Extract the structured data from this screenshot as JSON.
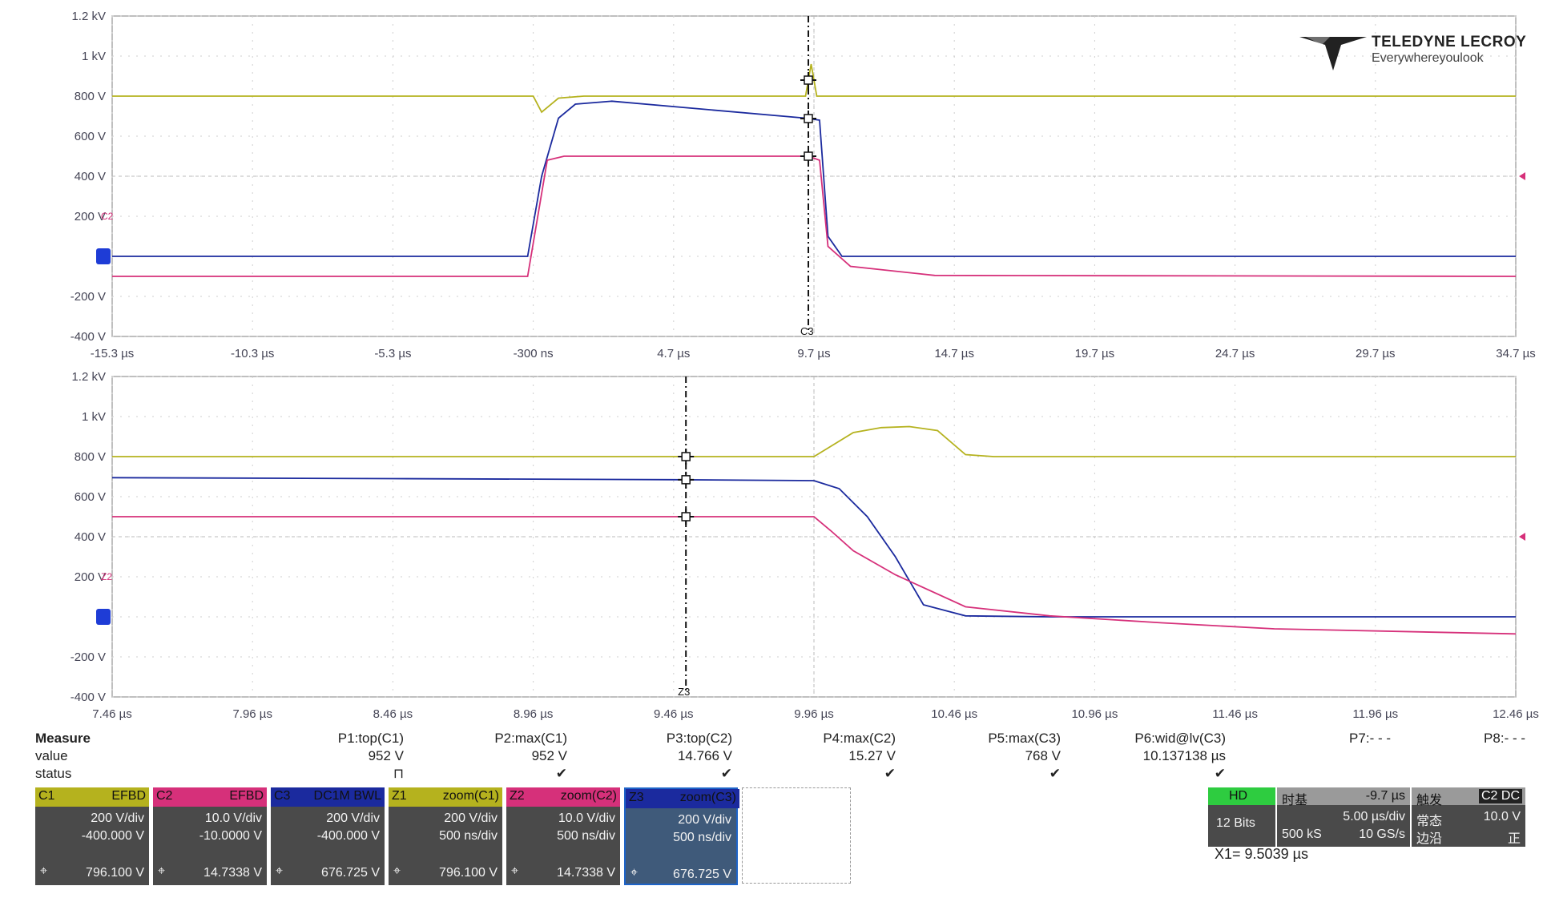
{
  "logo": {
    "brand": "TELEDYNE LECROY",
    "tagline": "Everywhereyoulook"
  },
  "colors": {
    "c1": "#b5b21e",
    "c2": "#d6307a",
    "c3": "#1b2a9e",
    "grid": "#cfcfcf",
    "panel": "#4a4a4a"
  },
  "upper_panel": {
    "y_ticks": [
      "1.2 kV",
      "1 kV",
      "800 V",
      "600 V",
      "400 V",
      "200 V",
      "0",
      "-200 V",
      "-400 V"
    ],
    "x_ticks": [
      "-15.3 µs",
      "-10.3 µs",
      "-5.3 µs",
      "-300 ns",
      "4.7 µs",
      "9.7 µs",
      "14.7 µs",
      "19.7 µs",
      "24.7 µs",
      "29.7 µs",
      "34.7 µs"
    ],
    "cursor_label": "C3",
    "channel_marker_label": "C2"
  },
  "lower_panel": {
    "y_ticks": [
      "1.2 kV",
      "1 kV",
      "800 V",
      "600 V",
      "400 V",
      "200 V",
      "0",
      "-200 V",
      "-400 V"
    ],
    "x_ticks": [
      "7.46 µs",
      "7.96 µs",
      "8.46 µs",
      "8.96 µs",
      "9.46 µs",
      "9.96 µs",
      "10.46 µs",
      "10.96 µs",
      "11.46 µs",
      "11.96 µs",
      "12.46 µs"
    ],
    "cursor_label": "Z3",
    "channel_marker_label": "Z2"
  },
  "chart_data": [
    {
      "type": "line",
      "title": "",
      "xlabel": "",
      "ylabel": "",
      "x_unit": "µs",
      "y_unit": "V",
      "xlim": [
        -15.3,
        34.7
      ],
      "ylim": [
        -400,
        1200
      ],
      "grid": true,
      "series": [
        {
          "channel": "C1",
          "x": [
            -15.3,
            -0.3,
            0.0,
            0.6,
            1.5,
            9.4,
            9.6,
            9.8,
            10.0,
            34.7
          ],
          "y": [
            800,
            800,
            720,
            790,
            800,
            800,
            960,
            800,
            800,
            800
          ]
        },
        {
          "channel": "C3",
          "x": [
            -15.3,
            -0.5,
            0.0,
            0.6,
            1.2,
            2.5,
            9.4,
            9.9,
            10.2,
            10.7,
            34.7
          ],
          "y": [
            0,
            0,
            400,
            690,
            760,
            775,
            690,
            680,
            100,
            0,
            0
          ]
        },
        {
          "channel": "C2",
          "x": [
            -15.3,
            -0.5,
            0.2,
            0.8,
            2.0,
            9.5,
            9.9,
            10.2,
            11.0,
            14.0,
            34.7
          ],
          "y": [
            -100,
            -100,
            480,
            500,
            500,
            500,
            480,
            50,
            -50,
            -95,
            -100
          ]
        }
      ],
      "cursor_x": 9.5
    },
    {
      "type": "line",
      "title": "",
      "xlabel": "",
      "ylabel": "",
      "x_unit": "µs",
      "y_unit": "V",
      "xlim": [
        7.46,
        12.46
      ],
      "ylim": [
        -400,
        1200
      ],
      "grid": true,
      "series": [
        {
          "channel": "Z1",
          "x": [
            7.46,
            9.96,
            10.1,
            10.2,
            10.3,
            10.4,
            10.5,
            10.6,
            12.46
          ],
          "y": [
            800,
            800,
            920,
            945,
            950,
            930,
            810,
            800,
            800
          ]
        },
        {
          "channel": "Z3",
          "x": [
            7.46,
            8.46,
            9.46,
            9.96,
            10.05,
            10.15,
            10.25,
            10.35,
            10.5,
            10.8,
            12.46
          ],
          "y": [
            695,
            690,
            685,
            680,
            640,
            500,
            300,
            60,
            5,
            0,
            0
          ]
        },
        {
          "channel": "Z2",
          "x": [
            7.46,
            8.46,
            9.46,
            9.96,
            10.02,
            10.1,
            10.25,
            10.5,
            10.8,
            11.2,
            11.6,
            12.46
          ],
          "y": [
            500,
            500,
            500,
            500,
            430,
            330,
            210,
            50,
            5,
            -30,
            -60,
            -85
          ]
        }
      ],
      "cursor_x": 9.5039
    }
  ],
  "measure": {
    "header": "Measure",
    "row_value_label": "value",
    "row_status_label": "status",
    "params": [
      {
        "name": "P1:top(C1)",
        "value": "952 V",
        "status": "⊓"
      },
      {
        "name": "P2:max(C1)",
        "value": "952 V",
        "status": "✔"
      },
      {
        "name": "P3:top(C2)",
        "value": "14.766 V",
        "status": "✔"
      },
      {
        "name": "P4:max(C2)",
        "value": "15.27 V",
        "status": "✔"
      },
      {
        "name": "P5:max(C3)",
        "value": "768 V",
        "status": "✔"
      },
      {
        "name": "P6:wid@lv(C3)",
        "value": "10.137138 µs",
        "status": "✔"
      },
      {
        "name": "P7:- - -",
        "value": "",
        "status": ""
      },
      {
        "name": "P8:- - -",
        "value": "",
        "status": ""
      }
    ]
  },
  "channels": [
    {
      "name": "C1",
      "tag": "EFBD",
      "vdiv": "200 V/div",
      "offset": "-400.000 V",
      "cursor": "796.100 V",
      "color": "#b5b21e"
    },
    {
      "name": "C2",
      "tag": "EFBD",
      "vdiv": "10.0 V/div",
      "offset": "-10.0000 V",
      "cursor": "14.7338 V",
      "color": "#d6307a"
    },
    {
      "name": "C3",
      "tag": "DC1M BWL",
      "vdiv": "200 V/div",
      "offset": "-400.000 V",
      "cursor": "676.725 V",
      "color": "#1b2a9e"
    },
    {
      "name": "Z1",
      "tag": "zoom(C1)",
      "vdiv": "200 V/div",
      "offset": "500 ns/div",
      "cursor": "796.100 V",
      "color": "#b5b21e"
    },
    {
      "name": "Z2",
      "tag": "zoom(C2)",
      "vdiv": "10.0 V/div",
      "offset": "500 ns/div",
      "cursor": "14.7338 V",
      "color": "#d6307a"
    },
    {
      "name": "Z3",
      "tag": "zoom(C3)",
      "vdiv": "200 V/div",
      "offset": "500 ns/div",
      "cursor": "676.725 V",
      "color": "#1b2a9e"
    }
  ],
  "hd": {
    "label": "HD",
    "bits": "12 Bits"
  },
  "timebase": {
    "title": "时基",
    "delay": "-9.7 µs",
    "tdiv": "5.00 µs/div",
    "samples": "500 kS",
    "rate": "10 GS/s"
  },
  "trigger": {
    "title": "触发",
    "tags": "C2 DC",
    "mode": "常态",
    "edge": "边沿",
    "level": "10.0 V",
    "slope": "正"
  },
  "cursor_readout": "X1= 9.5039 µs"
}
